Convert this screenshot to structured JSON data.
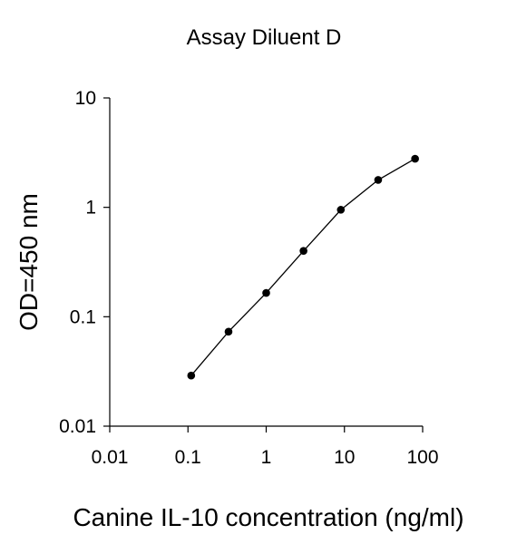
{
  "chart_data": {
    "type": "line",
    "title": "Assay Diluent D",
    "xlabel": "Canine IL-10 concentration (ng/ml)",
    "ylabel": "OD=450 nm",
    "x_scale": "log",
    "y_scale": "log",
    "xlim": [
      0.01,
      100
    ],
    "ylim": [
      0.01,
      10
    ],
    "x_ticks": [
      {
        "value": 0.01,
        "label": "0.01"
      },
      {
        "value": 0.1,
        "label": "0.1"
      },
      {
        "value": 1,
        "label": "1"
      },
      {
        "value": 10,
        "label": "10"
      },
      {
        "value": 100,
        "label": "100"
      }
    ],
    "y_ticks": [
      {
        "value": 0.01,
        "label": "0.01"
      },
      {
        "value": 0.1,
        "label": "0.1"
      },
      {
        "value": 1,
        "label": "1"
      },
      {
        "value": 10,
        "label": "10"
      }
    ],
    "grid": false,
    "legend": "none",
    "series": [
      {
        "x": [
          0.11,
          0.33,
          1.0,
          3.0,
          9.0,
          27.0,
          80.0
        ],
        "y": [
          0.029,
          0.073,
          0.165,
          0.4,
          0.95,
          1.78,
          2.78
        ]
      }
    ],
    "colors": {
      "line": "#000000",
      "marker": "#000000",
      "axis": "#000000"
    }
  }
}
